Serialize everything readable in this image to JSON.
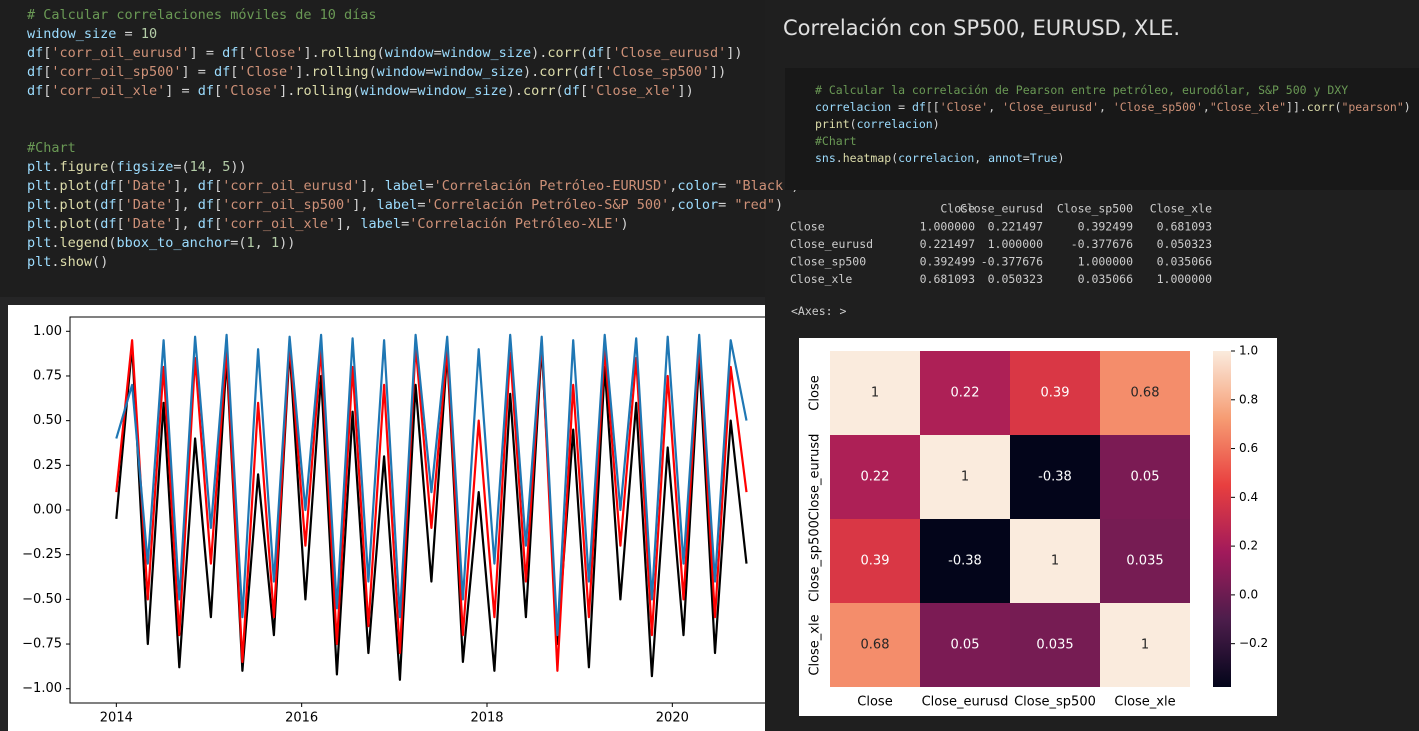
{
  "left_cell": {
    "block_1": [
      "# Calcular correlaciones móviles de 10 días",
      "window_size = 10",
      "df['corr_oil_eurusd'] = df['Close'].rolling(window=window_size).corr(df['Close_eurusd'])",
      "df['corr_oil_sp500'] = df['Close'].rolling(window=window_size).corr(df['Close_sp500'])",
      "df['corr_oil_xle'] = df['Close'].rolling(window=window_size).corr(df['Close_xle'])"
    ],
    "block_2": [
      "#Chart",
      "plt.figure(figsize=(14, 5))",
      "plt.plot(df['Date'], df['corr_oil_eurusd'], label='Correlación Petróleo-EURUSD',color= \"Black\")",
      "plt.plot(df['Date'], df['corr_oil_sp500'], label='Correlación Petróleo-S&P 500',color= \"red\")",
      "plt.plot(df['Date'], df['corr_oil_xle'], label='Correlación Petróleo-XLE')",
      "plt.legend(bbox_to_anchor=(1, 1))",
      "plt.show()"
    ]
  },
  "line_chart": {
    "type": "line",
    "x": [
      2014.0,
      2014.17,
      2014.34,
      2014.51,
      2014.68,
      2014.85,
      2015.02,
      2015.19,
      2015.36,
      2015.53,
      2015.7,
      2015.87,
      2016.04,
      2016.21,
      2016.38,
      2016.55,
      2016.72,
      2016.89,
      2017.06,
      2017.23,
      2017.4,
      2017.57,
      2017.74,
      2017.91,
      2018.08,
      2018.25,
      2018.42,
      2018.59,
      2018.76,
      2018.93,
      2019.1,
      2019.27,
      2019.44,
      2019.61,
      2019.78,
      2019.95,
      2020.12,
      2020.29,
      2020.46,
      2020.63,
      2020.8
    ],
    "series": [
      {
        "color": "#000000",
        "values": [
          -0.05,
          0.92,
          -0.75,
          0.6,
          -0.88,
          0.4,
          -0.6,
          0.85,
          -0.9,
          0.2,
          -0.7,
          0.9,
          -0.5,
          0.75,
          -0.92,
          0.55,
          -0.8,
          0.3,
          -0.95,
          0.7,
          -0.4,
          0.88,
          -0.85,
          0.1,
          -0.9,
          0.65,
          -0.6,
          0.92,
          -0.75,
          0.45,
          -0.88,
          0.8,
          -0.5,
          0.6,
          -0.93,
          0.35,
          -0.7,
          0.85,
          -0.8,
          0.5,
          -0.3
        ]
      },
      {
        "color": "#ff0000",
        "values": [
          0.1,
          0.95,
          -0.5,
          0.8,
          -0.7,
          0.85,
          -0.3,
          0.9,
          -0.85,
          0.6,
          -0.6,
          0.93,
          -0.2,
          0.9,
          -0.75,
          0.8,
          -0.65,
          0.7,
          -0.8,
          0.92,
          -0.1,
          0.9,
          -0.7,
          0.5,
          -0.6,
          0.88,
          -0.4,
          0.95,
          -0.9,
          0.7,
          -0.6,
          0.9,
          -0.2,
          0.85,
          -0.7,
          0.75,
          -0.5,
          0.93,
          -0.6,
          0.8,
          0.1
        ]
      },
      {
        "color": "#1f77b4",
        "values": [
          0.4,
          0.7,
          -0.3,
          0.95,
          -0.5,
          0.97,
          -0.1,
          0.98,
          -0.6,
          0.9,
          -0.4,
          0.97,
          0.0,
          0.98,
          -0.55,
          0.96,
          -0.4,
          0.95,
          -0.6,
          0.98,
          0.1,
          0.97,
          -0.5,
          0.9,
          -0.3,
          0.98,
          -0.2,
          0.97,
          -0.7,
          0.95,
          -0.4,
          0.98,
          0.0,
          0.96,
          -0.5,
          0.97,
          -0.3,
          0.98,
          -0.4,
          0.95,
          0.5
        ]
      }
    ],
    "xlim": [
      2013.5,
      2021.0
    ],
    "xticks": [
      2014,
      2016,
      2018,
      2020
    ],
    "ylim": [
      -1.08,
      1.08
    ],
    "yticks": [
      {
        "value": 1,
        "label": "1.00"
      },
      {
        "value": 0.75,
        "label": "0.75"
      },
      {
        "value": 0.5,
        "label": "0.50"
      },
      {
        "value": 0.25,
        "label": "0.25"
      },
      {
        "value": 0,
        "label": "0.00"
      },
      {
        "value": -0.25,
        "label": "−0.25"
      },
      {
        "value": -0.5,
        "label": "−0.50"
      },
      {
        "value": -0.75,
        "label": "−0.75"
      },
      {
        "value": -1,
        "label": "−1.00"
      }
    ]
  },
  "right_title": "Correlación con SP500, EURUSD, XLE.",
  "right_cell": [
    "# Calcular la correlación de Pearson entre petróleo, eurodólar, S&P 500 y DXY",
    "correlacion = df[['Close', 'Close_eurusd', 'Close_sp500',\"Close_xle\"]].corr(\"pearson\")",
    "print(correlacion)",
    "#Chart",
    "sns.heatmap(correlacion, annot=True)"
  ],
  "corr_output": {
    "header": [
      "Close",
      "Close_eurusd",
      "Close_sp500",
      "Close_xle"
    ],
    "rows": [
      [
        "Close",
        "1.000000",
        "0.221497",
        "0.392499",
        "0.681093"
      ],
      [
        "Close_eurusd",
        "0.221497",
        "1.000000",
        "-0.377676",
        "0.050323"
      ],
      [
        "Close_sp500",
        "0.392499",
        "-0.377676",
        "1.000000",
        "0.035066"
      ],
      [
        "Close_xle",
        "0.681093",
        "0.050323",
        "0.035066",
        "1.000000"
      ]
    ]
  },
  "axes_repr": "<Axes: >",
  "heatmap": {
    "type": "heatmap",
    "x_labels": [
      "Close",
      "Close_eurusd",
      "Close_sp500",
      "Close_xle"
    ],
    "y_labels": [
      "Close",
      "Close_eurusd",
      "Close_sp500",
      "Close_xle"
    ],
    "values": [
      [
        1.0,
        0.221497,
        0.392499,
        0.681093
      ],
      [
        0.221497,
        1.0,
        -0.377676,
        0.050323
      ],
      [
        0.392499,
        -0.377676,
        1.0,
        0.035066
      ],
      [
        0.681093,
        0.050323,
        0.035066,
        1.0
      ]
    ],
    "value_labels": [
      [
        "1",
        "0.22",
        "0.39",
        "0.68"
      ],
      [
        "0.22",
        "1",
        "-0.38",
        "0.05"
      ],
      [
        "0.39",
        "-0.38",
        "1",
        "0.035"
      ],
      [
        "0.68",
        "0.05",
        "0.035",
        "1"
      ]
    ],
    "clim": [
      -0.377676,
      1.0
    ],
    "cticks": [
      {
        "value": 1,
        "label": "1.0"
      },
      {
        "value": 0.8,
        "label": "0.8"
      },
      {
        "value": 0.6,
        "label": "0.6"
      },
      {
        "value": 0.4,
        "label": "0.4"
      },
      {
        "value": 0.2,
        "label": "0.2"
      },
      {
        "value": 0,
        "label": "0.0"
      },
      {
        "value": -0.2,
        "label": "−0.2"
      }
    ]
  }
}
